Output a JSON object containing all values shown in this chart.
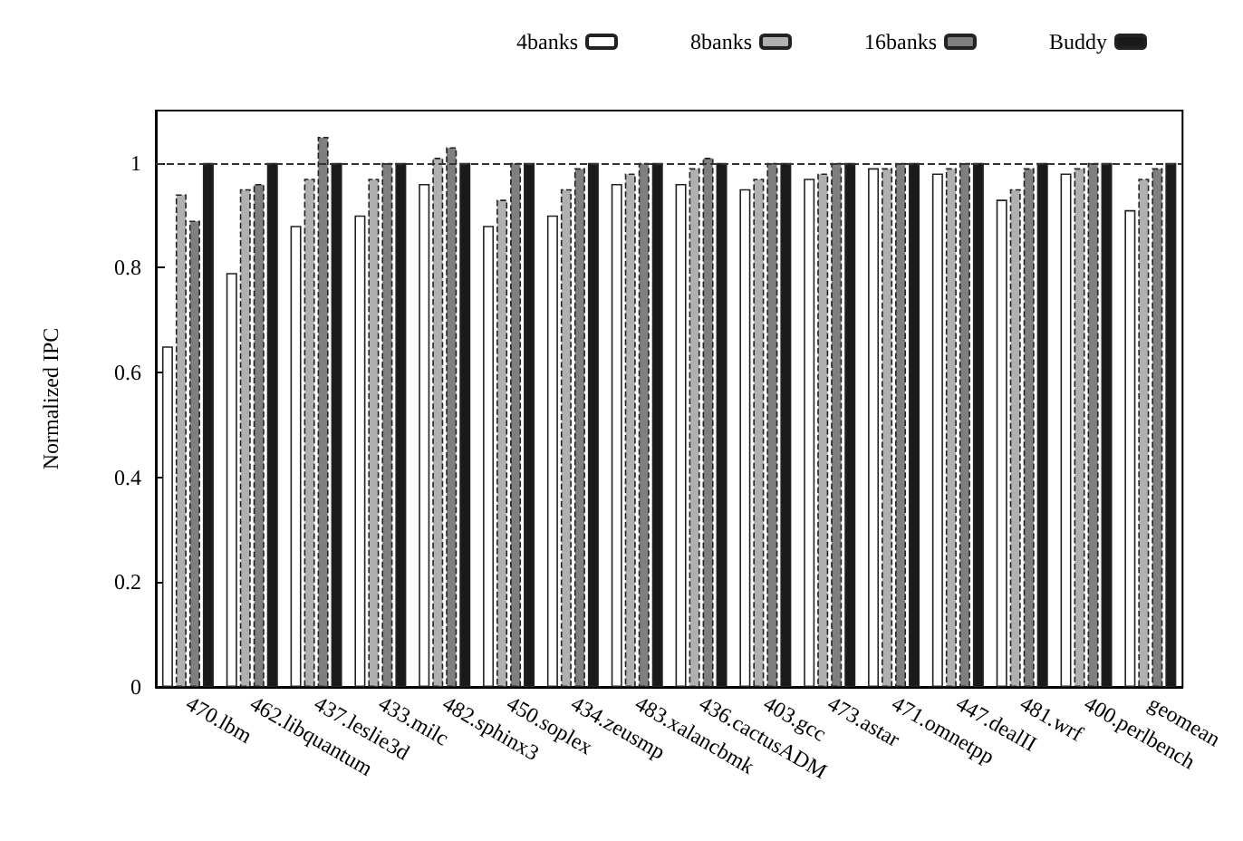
{
  "chart_data": {
    "type": "bar",
    "ylabel": "Normalized IPC",
    "categories": [
      "470.lbm",
      "462.libquantum",
      "437.leslie3d",
      "433.milc",
      "482.sphinx3",
      "450.soplex",
      "434.zeusmp",
      "483.xalancbmk",
      "436.cactusADM",
      "403.gcc",
      "473.astar",
      "471.omnetpp",
      "447.dealII",
      "481.wrf",
      "400.perlbench",
      "geomean"
    ],
    "series": [
      {
        "name": "4banks",
        "color": "#ffffff",
        "values": [
          0.65,
          0.79,
          0.88,
          0.9,
          0.96,
          0.88,
          0.9,
          0.96,
          0.96,
          0.95,
          0.97,
          0.99,
          0.98,
          0.93,
          0.98,
          0.91
        ]
      },
      {
        "name": "8banks",
        "color": "#b0b0b0",
        "values": [
          0.94,
          0.95,
          0.97,
          0.97,
          1.01,
          0.93,
          0.95,
          0.98,
          0.99,
          0.97,
          0.98,
          0.99,
          0.99,
          0.95,
          0.99,
          0.97
        ]
      },
      {
        "name": "16banks",
        "color": "#7f7f7f",
        "values": [
          0.89,
          0.96,
          1.05,
          1.0,
          1.03,
          1.0,
          0.99,
          1.0,
          1.01,
          1.0,
          1.0,
          1.0,
          1.0,
          0.99,
          1.0,
          0.99
        ]
      },
      {
        "name": "Buddy",
        "color": "#1a1a1a",
        "values": [
          1,
          1,
          1,
          1,
          1,
          1,
          1,
          1,
          1,
          1,
          1,
          1,
          1,
          1,
          1,
          1
        ]
      }
    ],
    "ylim": [
      0,
      1.1
    ],
    "yticks": [
      0,
      0.2,
      0.4,
      0.6,
      0.8,
      1
    ],
    "ref_lines": [
      {
        "axis": "y",
        "value": 1,
        "line_style": "dashed",
        "color": "#333333"
      }
    ],
    "legend": "top right",
    "grid": false
  }
}
